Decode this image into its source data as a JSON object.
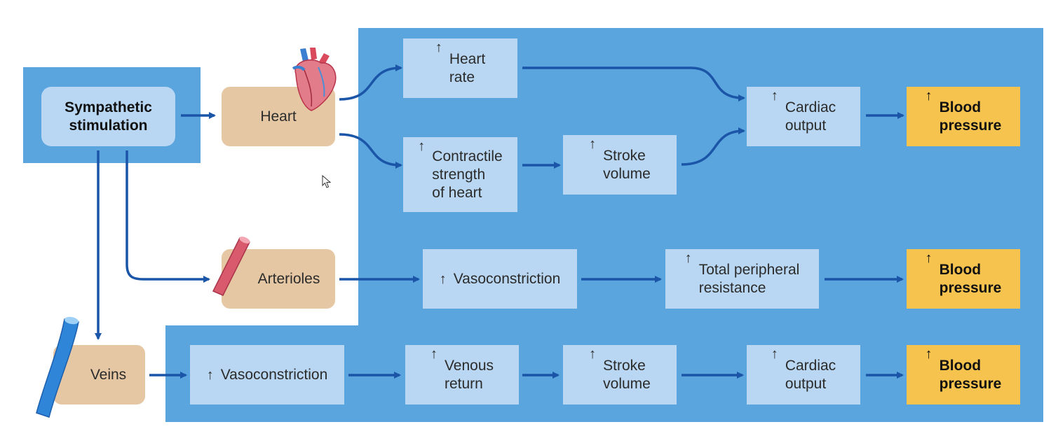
{
  "colors": {
    "panel_blue": "#5ba5df",
    "box_light_blue": "#b9d7f2",
    "box_tan": "#e5c7a3",
    "box_yellow": "#f6c44e",
    "arrow_blue": "#1a55a8"
  },
  "up_arrow": "↑",
  "nodes": {
    "sympathetic": {
      "line1": "Sympathetic",
      "line2": "stimulation"
    },
    "heart": "Heart",
    "arterioles": "Arterioles",
    "veins": "Veins",
    "heart_rate": {
      "line1": "Heart",
      "line2": "rate"
    },
    "contractile": {
      "line1": "Contractile",
      "line2": "strength",
      "line3": "of heart"
    },
    "stroke_volume_1": {
      "line1": "Stroke",
      "line2": "volume"
    },
    "cardiac_output_1": {
      "line1": "Cardiac",
      "line2": "output"
    },
    "blood_pressure_1": {
      "line1": "Blood",
      "line2": "pressure"
    },
    "vasoconstriction_1": "Vasoconstriction",
    "tpr": {
      "line1": "Total peripheral",
      "line2": "resistance"
    },
    "blood_pressure_2": {
      "line1": "Blood",
      "line2": "pressure"
    },
    "vasoconstriction_2": "Vasoconstriction",
    "venous_return": {
      "line1": "Venous",
      "line2": "return"
    },
    "stroke_volume_2": {
      "line1": "Stroke",
      "line2": "volume"
    },
    "cardiac_output_2": {
      "line1": "Cardiac",
      "line2": "output"
    },
    "blood_pressure_3": {
      "line1": "Blood",
      "line2": "pressure"
    }
  },
  "icons": [
    "heart-icon",
    "arteriole-icon",
    "vein-icon",
    "mouse-cursor-icon"
  ]
}
